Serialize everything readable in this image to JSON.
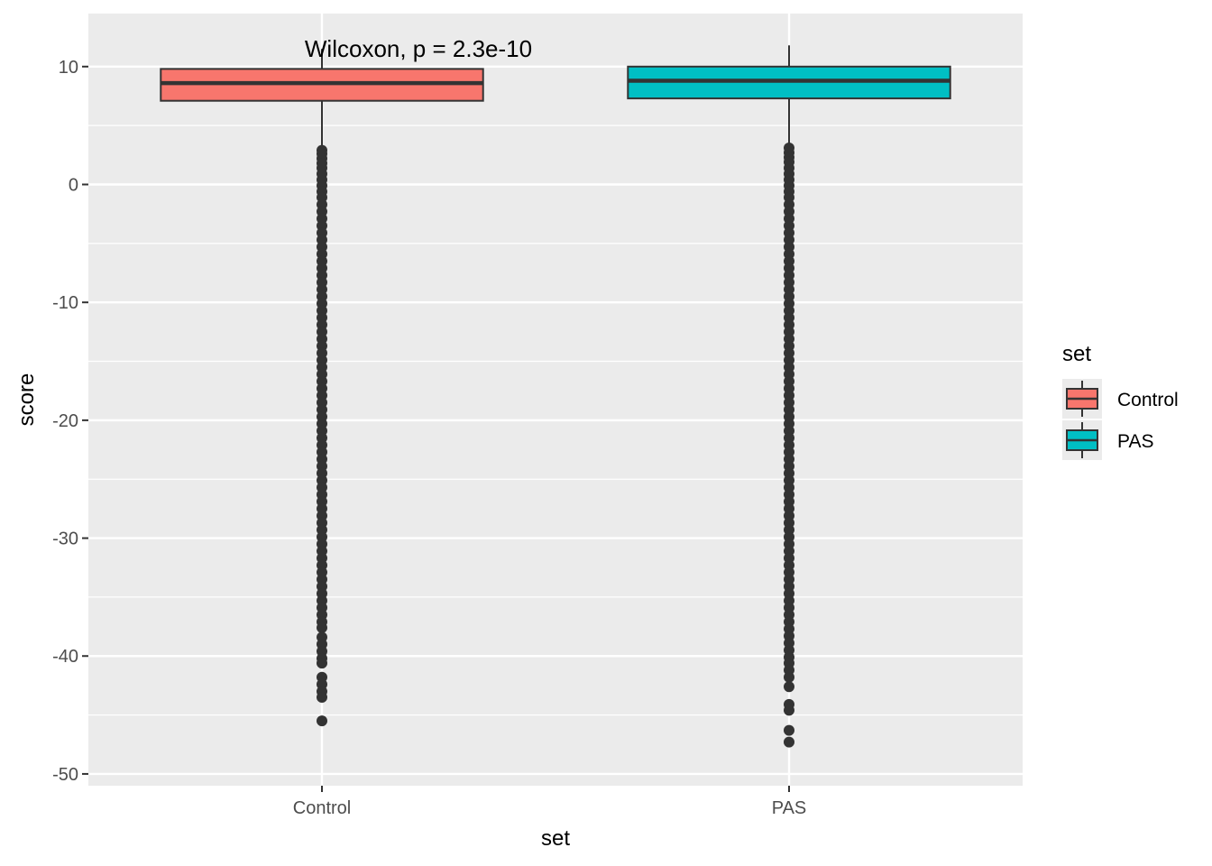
{
  "chart_data": {
    "type": "box",
    "xlabel": "set",
    "ylabel": "score",
    "categories": [
      "Control",
      "PAS"
    ],
    "ylim": [
      -51,
      14.5
    ],
    "yticks": [
      10,
      0,
      -10,
      -20,
      -30,
      -40,
      -50
    ],
    "ytick_labels": [
      "10",
      "0",
      "-10",
      "-20",
      "-30",
      "-40",
      "-50"
    ],
    "grid": true,
    "annotation": "Wilcoxon, p = 2.3e-10",
    "legend": {
      "title": "set",
      "position": "right",
      "entries": [
        "Control",
        "PAS"
      ]
    },
    "colors": {
      "Control": "#F8766D",
      "PAS": "#00BFC4",
      "panel": "#EBEBEB",
      "outline": "#333333"
    },
    "boxes": [
      {
        "category": "Control",
        "q1": 7.1,
        "median": 8.6,
        "q3": 9.8,
        "whisker_low": 3.0,
        "whisker_high": 11.5,
        "outliers": [
          2.9,
          2.6,
          2.2,
          1.8,
          1.4,
          0.9,
          0.4,
          -0.1,
          -0.6,
          -1.1,
          -1.7,
          -2.3,
          -2.9,
          -3.5,
          -4.1,
          -4.7,
          -5.3,
          -5.9,
          -6.5,
          -7.1,
          -7.7,
          -8.3,
          -8.9,
          -9.5,
          -10.1,
          -10.7,
          -11.3,
          -11.9,
          -12.5,
          -13.1,
          -13.7,
          -14.3,
          -14.9,
          -15.5,
          -16.1,
          -16.7,
          -17.3,
          -17.9,
          -18.5,
          -19.1,
          -19.7,
          -20.3,
          -20.9,
          -21.5,
          -22.1,
          -22.7,
          -23.3,
          -23.9,
          -24.5,
          -25.1,
          -25.7,
          -26.3,
          -26.9,
          -27.5,
          -28.1,
          -28.7,
          -29.3,
          -29.9,
          -30.5,
          -31.1,
          -31.7,
          -32.3,
          -32.9,
          -33.5,
          -34.1,
          -34.7,
          -35.3,
          -35.9,
          -36.5,
          -37.1,
          -37.6,
          -38.4,
          -39.0,
          -39.6,
          -40.2,
          -40.6,
          -41.8,
          -42.4,
          -43.0,
          -43.5,
          -45.5
        ]
      },
      {
        "category": "PAS",
        "q1": 7.3,
        "median": 8.8,
        "q3": 10.0,
        "whisker_low": 3.2,
        "whisker_high": 11.8,
        "outliers": [
          3.1,
          2.7,
          2.3,
          1.9,
          1.4,
          0.9,
          0.4,
          -0.1,
          -0.6,
          -1.1,
          -1.7,
          -2.3,
          -2.9,
          -3.5,
          -4.1,
          -4.7,
          -5.3,
          -5.9,
          -6.5,
          -7.1,
          -7.7,
          -8.3,
          -8.9,
          -9.5,
          -10.1,
          -10.7,
          -11.3,
          -11.9,
          -12.5,
          -13.1,
          -13.7,
          -14.3,
          -14.9,
          -15.5,
          -16.1,
          -16.7,
          -17.3,
          -17.9,
          -18.5,
          -19.1,
          -19.7,
          -20.3,
          -20.9,
          -21.5,
          -22.1,
          -22.7,
          -23.3,
          -23.9,
          -24.5,
          -25.1,
          -25.7,
          -26.3,
          -26.9,
          -27.5,
          -28.1,
          -28.7,
          -29.3,
          -29.9,
          -30.5,
          -31.1,
          -31.7,
          -32.3,
          -32.9,
          -33.5,
          -34.1,
          -34.7,
          -35.3,
          -35.9,
          -36.5,
          -37.1,
          -37.7,
          -38.3,
          -38.9,
          -39.5,
          -40.1,
          -40.6,
          -41.2,
          -41.8,
          -42.6,
          -44.1,
          -44.6,
          -46.3,
          -47.3
        ]
      }
    ]
  }
}
